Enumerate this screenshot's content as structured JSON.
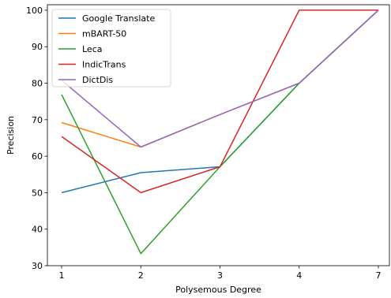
{
  "chart_data": {
    "type": "line",
    "xlabel": "Polysemous Degree",
    "ylabel": "Precision",
    "categories": [
      "1",
      "2",
      "3",
      "4",
      "7"
    ],
    "y_ticks": [
      "30",
      "40",
      "50",
      "60",
      "70",
      "80",
      "90",
      "100"
    ],
    "ylim": [
      30,
      101.5
    ],
    "grid": false,
    "legend_position": "top-left",
    "series": [
      {
        "name": "Google Translate",
        "color": "#1f77b4",
        "values": [
          50.0,
          55.5,
          57.1,
          80.0,
          100.0
        ]
      },
      {
        "name": "mBART-50",
        "color": "#ff7f0e",
        "values": [
          69.2,
          62.5,
          71.4,
          80.0,
          100.0
        ]
      },
      {
        "name": "Leca",
        "color": "#2ca02c",
        "values": [
          76.9,
          33.3,
          57.1,
          80.0,
          100.0
        ]
      },
      {
        "name": "IndicTrans",
        "color": "#d62728",
        "values": [
          65.4,
          50.0,
          57.1,
          100.0,
          100.0
        ]
      },
      {
        "name": "DictDis",
        "color": "#9467bd",
        "values": [
          80.8,
          62.5,
          71.4,
          80.0,
          100.0
        ]
      }
    ]
  }
}
